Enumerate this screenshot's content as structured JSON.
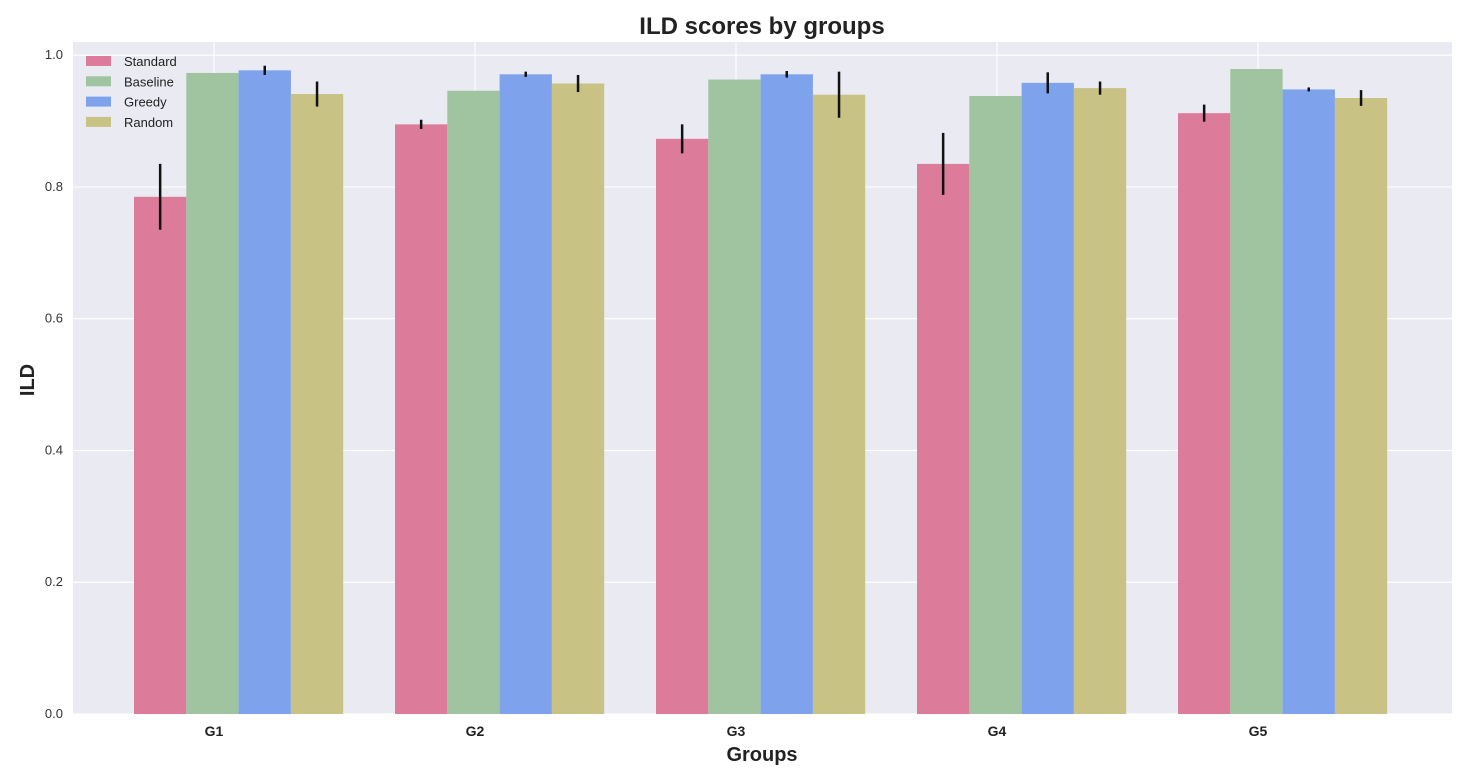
{
  "chart_data": {
    "type": "bar",
    "title": "ILD scores by groups",
    "xlabel": "Groups",
    "ylabel": "ILD",
    "ylim": [
      0,
      1.02
    ],
    "yticks": [
      "0.0",
      "0.2",
      "0.4",
      "0.6",
      "0.8",
      "1.0"
    ],
    "grid": true,
    "legend_position": "top-left",
    "categories": [
      "G1",
      "G2",
      "G3",
      "G4",
      "G5"
    ],
    "series": [
      {
        "name": "Standard",
        "color": "#dd7b9b",
        "values": [
          0.785,
          0.895,
          0.873,
          0.835,
          0.912
        ],
        "errors": [
          0.05,
          0.007,
          0.022,
          0.047,
          0.013
        ]
      },
      {
        "name": "Baseline",
        "color": "#9fc49f",
        "values": [
          0.973,
          0.946,
          0.963,
          0.938,
          0.979
        ],
        "errors": [
          0,
          0,
          0,
          0,
          0
        ]
      },
      {
        "name": "Greedy",
        "color": "#7ea3ec",
        "values": [
          0.977,
          0.971,
          0.971,
          0.958,
          0.948
        ],
        "errors": [
          0.007,
          0.004,
          0.005,
          0.016,
          0.003
        ]
      },
      {
        "name": "Random",
        "color": "#c8c285",
        "values": [
          0.941,
          0.957,
          0.94,
          0.95,
          0.935
        ],
        "errors": [
          0.019,
          0.013,
          0.035,
          0.01,
          0.012
        ]
      }
    ]
  }
}
